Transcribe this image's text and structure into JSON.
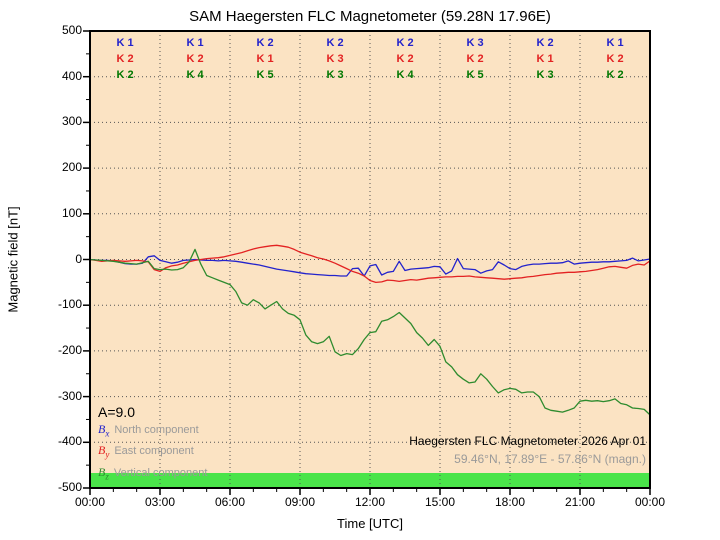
{
  "title": "SAM Haegersten FLC Magnetometer (59.28N 17.96E)",
  "a_index_label": "A=9.0",
  "legend": {
    "items": [
      {
        "base": "B",
        "sub": "x",
        "label": "North component"
      },
      {
        "base": "B",
        "sub": "y",
        "label": "East component"
      },
      {
        "base": "B",
        "sub": "z",
        "label": "Vertical component"
      }
    ]
  },
  "footer": {
    "line1": "Haegersten FLC Magnetometer 2026 Apr 01",
    "line2": "59.46°N, 17.89°E - 57.86°N (magn.)"
  },
  "chart_data": {
    "type": "line",
    "title": "SAM Haegersten FLC Magnetometer (59.28N 17.96E)",
    "xlabel": "Time [UTC]",
    "ylabel": "Magnetic field [nT]",
    "ylim": [
      -500,
      500
    ],
    "xlim_hours": [
      0,
      24
    ],
    "grid": true,
    "x_tick_labels": [
      "00:00",
      "03:00",
      "06:00",
      "09:00",
      "12:00",
      "15:00",
      "18:00",
      "21:00",
      "00:00"
    ],
    "x_tick_hours": [
      0,
      3,
      6,
      9,
      12,
      15,
      18,
      21,
      24
    ],
    "y_tick_values": [
      500,
      400,
      300,
      200,
      100,
      0,
      -100,
      -200,
      -300,
      -400,
      -500
    ],
    "y_tick_labels": [
      "500",
      "400",
      "300",
      "200",
      "100",
      "0",
      "-100",
      "-200",
      "-300",
      "-400",
      "-500"
    ],
    "t_start_hours": 0,
    "t_step_hours": 0.25,
    "plot_bg_color": "#fbe3c3",
    "activity_bar_color": "#4ae44a",
    "series": [
      {
        "name": "Bx North component",
        "color": "#2323cc",
        "values": [
          0,
          -1,
          -2,
          -2,
          -3,
          -6,
          -9,
          -10,
          -10,
          -8,
          6,
          8,
          -2,
          -5,
          -8,
          -6,
          -2,
          -1,
          0,
          -1,
          -2,
          -2,
          -3,
          -2,
          -3,
          -4,
          -6,
          -8,
          -10,
          -12,
          -15,
          -18,
          -21,
          -23,
          -25,
          -27,
          -29,
          -31,
          -32,
          -33,
          -34,
          -35,
          -35,
          -36,
          -36,
          -20,
          -19,
          -36,
          -14,
          -11,
          -34,
          -28,
          -26,
          -4,
          -24,
          -21,
          -20,
          -19,
          -18,
          -15,
          -16,
          -32,
          -25,
          2,
          -20,
          -21,
          -22,
          -30,
          -25,
          -22,
          -5,
          -12,
          -20,
          -22,
          -15,
          -12,
          -10,
          -10,
          -9,
          -8,
          -8,
          -7,
          -3,
          -10,
          -8,
          -7,
          -6,
          -6,
          -5,
          -5,
          -4,
          -3,
          -2,
          3,
          -3,
          -1,
          1
        ]
      },
      {
        "name": "By East component",
        "color": "#e32222",
        "values": [
          0,
          -2,
          -4,
          -3,
          -2,
          -3,
          -4,
          -3,
          -2,
          -3,
          -5,
          -22,
          -26,
          -18,
          -14,
          -12,
          -8,
          -5,
          -2,
          0,
          2,
          3,
          4,
          6,
          9,
          12,
          15,
          19,
          23,
          26,
          28,
          30,
          31,
          29,
          27,
          22,
          16,
          12,
          8,
          4,
          1,
          -3,
          -8,
          -14,
          -20,
          -26,
          -30,
          -36,
          -46,
          -50,
          -49,
          -45,
          -46,
          -48,
          -46,
          -44,
          -45,
          -43,
          -41,
          -40,
          -39,
          -38,
          -38,
          -37,
          -37,
          -36,
          -38,
          -39,
          -40,
          -41,
          -42,
          -43,
          -42,
          -41,
          -40,
          -38,
          -37,
          -35,
          -33,
          -32,
          -30,
          -29,
          -28,
          -28,
          -27,
          -26,
          -24,
          -22,
          -19,
          -16,
          -15,
          -17,
          -19,
          -13,
          -10,
          -12,
          -3
        ]
      },
      {
        "name": "Bz Vertical component",
        "color": "#2e8b2e",
        "values": [
          0,
          -1,
          -2,
          -3,
          -4,
          -6,
          -8,
          -9,
          -10,
          -7,
          -4,
          -20,
          -22,
          -21,
          -23,
          -22,
          -18,
          -5,
          22,
          -10,
          -35,
          -40,
          -45,
          -50,
          -55,
          -70,
          -95,
          -100,
          -88,
          -95,
          -108,
          -100,
          -92,
          -108,
          -118,
          -122,
          -132,
          -165,
          -180,
          -184,
          -180,
          -168,
          -202,
          -210,
          -206,
          -208,
          -195,
          -175,
          -160,
          -158,
          -135,
          -132,
          -125,
          -116,
          -128,
          -140,
          -160,
          -172,
          -188,
          -175,
          -190,
          -224,
          -235,
          -252,
          -262,
          -270,
          -268,
          -250,
          -262,
          -278,
          -292,
          -285,
          -282,
          -284,
          -292,
          -290,
          -290,
          -300,
          -325,
          -330,
          -332,
          -334,
          -330,
          -325,
          -310,
          -308,
          -310,
          -309,
          -311,
          -309,
          -305,
          -315,
          -318,
          -325,
          -326,
          -328,
          -340
        ]
      }
    ],
    "k_indices": {
      "block_hours": 3,
      "rows": [
        {
          "component": "Bx",
          "color": "#2323cc",
          "values": [
            1,
            1,
            2,
            2,
            2,
            3,
            2,
            1
          ]
        },
        {
          "component": "By",
          "color": "#e32222",
          "values": [
            2,
            2,
            1,
            3,
            2,
            2,
            1,
            2
          ]
        },
        {
          "component": "Bz",
          "color": "#007800",
          "values": [
            2,
            4,
            5,
            3,
            4,
            5,
            3,
            2
          ]
        }
      ]
    }
  }
}
